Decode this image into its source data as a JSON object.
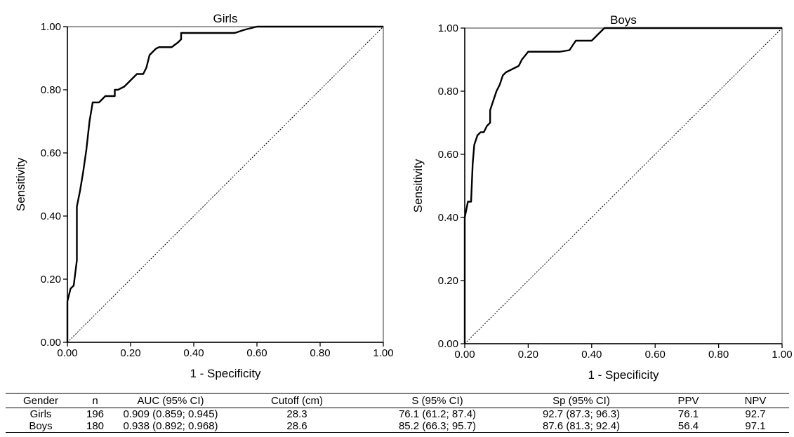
{
  "chart_data": [
    {
      "type": "line",
      "title": "Girls",
      "xlabel": "1 - Specificity",
      "ylabel": "Sensitivity",
      "xlim": [
        0,
        1
      ],
      "ylim": [
        0,
        1
      ],
      "xticks": [
        "0.00",
        "0.20",
        "0.40",
        "0.60",
        "0.80",
        "1.00"
      ],
      "yticks": [
        "0.00",
        "0.20",
        "0.40",
        "0.60",
        "0.80",
        "1.00"
      ],
      "reference_line": "diagonal",
      "roc": {
        "x": [
          0,
          0,
          0.01,
          0.02,
          0.03,
          0.03,
          0.04,
          0.05,
          0.06,
          0.07,
          0.08,
          0.09,
          0.1,
          0.12,
          0.15,
          0.15,
          0.16,
          0.18,
          0.2,
          0.22,
          0.24,
          0.25,
          0.26,
          0.27,
          0.28,
          0.29,
          0.3,
          0.33,
          0.35,
          0.36,
          0.36,
          0.4,
          0.45,
          0.5,
          0.53,
          0.56,
          0.58,
          0.6,
          0.7,
          0.8,
          0.9,
          1.0
        ],
        "y": [
          0,
          0.13,
          0.17,
          0.18,
          0.26,
          0.43,
          0.48,
          0.54,
          0.61,
          0.7,
          0.76,
          0.76,
          0.76,
          0.78,
          0.78,
          0.8,
          0.8,
          0.81,
          0.83,
          0.85,
          0.85,
          0.87,
          0.91,
          0.92,
          0.93,
          0.935,
          0.935,
          0.935,
          0.95,
          0.96,
          0.98,
          0.98,
          0.98,
          0.98,
          0.98,
          0.99,
          0.995,
          1.0,
          1.0,
          1.0,
          1.0,
          1.0
        ]
      }
    },
    {
      "type": "line",
      "title": "Boys",
      "xlabel": "1 - Specificity",
      "ylabel": "Sensitivity",
      "xlim": [
        0,
        1
      ],
      "ylim": [
        0,
        1
      ],
      "xticks": [
        "0.00",
        "0.20",
        "0.40",
        "0.60",
        "0.80",
        "1.00"
      ],
      "yticks": [
        "0.00",
        "0.20",
        "0.40",
        "0.60",
        "0.80",
        "1.00"
      ],
      "reference_line": "diagonal",
      "roc": {
        "x": [
          0,
          0,
          0.01,
          0.02,
          0.025,
          0.03,
          0.04,
          0.05,
          0.06,
          0.07,
          0.08,
          0.08,
          0.09,
          0.1,
          0.11,
          0.12,
          0.13,
          0.15,
          0.17,
          0.18,
          0.2,
          0.25,
          0.3,
          0.33,
          0.35,
          0.36,
          0.38,
          0.4,
          0.42,
          0.44,
          0.5,
          0.6,
          0.8,
          1.0
        ],
        "y": [
          0,
          0.4,
          0.45,
          0.45,
          0.57,
          0.63,
          0.66,
          0.67,
          0.67,
          0.69,
          0.7,
          0.74,
          0.77,
          0.8,
          0.82,
          0.85,
          0.86,
          0.87,
          0.88,
          0.9,
          0.925,
          0.925,
          0.925,
          0.93,
          0.96,
          0.96,
          0.96,
          0.96,
          0.98,
          1.0,
          1.0,
          1.0,
          1.0,
          1.0
        ]
      }
    }
  ],
  "table": {
    "headers": [
      "Gender",
      "n",
      "AUC (95% CI)",
      "Cutoff (cm)",
      "S (95% CI)",
      "Sp (95% CI)",
      "PPV",
      "NPV"
    ],
    "rows": [
      [
        "Girls",
        "196",
        "0.909 (0.859; 0.945)",
        "28.3",
        "76.1 (61.2; 87.4)",
        "92.7 (87.3; 96.3)",
        "76.1",
        "92.7"
      ],
      [
        "Boys",
        "180",
        "0.938 (0.892; 0.968)",
        "28.6",
        "85.2 (66.3; 95.7)",
        "87.6 (81.3; 92.4)",
        "56.4",
        "97.1"
      ]
    ]
  }
}
